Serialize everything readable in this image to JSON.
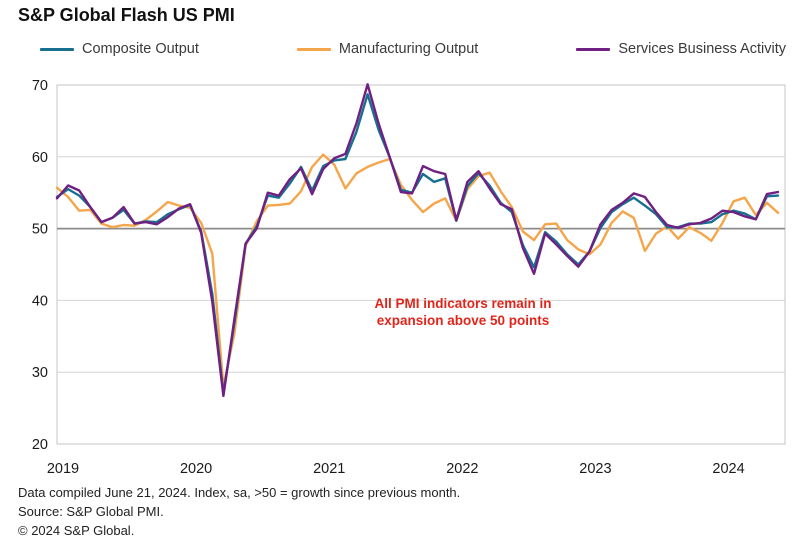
{
  "title": "S&P Global Flash US PMI",
  "legend": [
    {
      "label": "Composite Output",
      "color": "#17708F"
    },
    {
      "label": "Manufacturing Output",
      "color": "#F5A54A"
    },
    {
      "label": "Services Business Activity",
      "color": "#702082"
    }
  ],
  "annotation": {
    "lines": [
      "All PMI indicators remain in",
      "expansion above 50 points"
    ],
    "color": "#E1251B"
  },
  "footer": [
    "Data compiled June 21, 2024. Index, sa, >50 = growth since previous month.",
    "Source: S&P Global PMI.",
    "© 2024 S&P Global."
  ],
  "chart_data": {
    "type": "line",
    "title": "S&P Global Flash US PMI",
    "x_start": "2019-01",
    "x_end": "2024-06",
    "frequency": "monthly",
    "x_tick_labels": [
      "2019",
      "2020",
      "2021",
      "2022",
      "2023",
      "2024"
    ],
    "x_tick_month_index": [
      0,
      12,
      24,
      36,
      48,
      60
    ],
    "ylim": [
      20,
      70
    ],
    "y_ticks": [
      20,
      30,
      40,
      50,
      60,
      70
    ],
    "reference_line": 50,
    "grid": "horizontal",
    "legend_position": "top",
    "series": [
      {
        "name": "Composite Output",
        "color": "#17708F",
        "values": [
          54.4,
          55.5,
          54.6,
          53.0,
          50.9,
          51.5,
          52.6,
          50.7,
          51.0,
          50.9,
          52.0,
          52.7,
          53.3,
          49.6,
          40.9,
          27.0,
          37.0,
          47.9,
          50.3,
          54.6,
          54.3,
          56.3,
          58.6,
          55.3,
          58.7,
          59.5,
          59.7,
          63.5,
          68.7,
          63.7,
          59.9,
          55.4,
          55.0,
          57.6,
          56.5,
          57.0,
          51.1,
          55.9,
          57.7,
          56.0,
          53.6,
          52.3,
          47.7,
          44.6,
          49.5,
          48.2,
          46.4,
          45.0,
          46.8,
          50.1,
          52.3,
          53.4,
          54.3,
          53.2,
          52.0,
          50.2,
          50.2,
          50.7,
          50.7,
          50.9,
          52.0,
          52.5,
          52.1,
          51.3,
          54.5,
          54.6
        ]
      },
      {
        "name": "Manufacturing Output",
        "color": "#F5A54A",
        "values": [
          55.7,
          54.4,
          52.5,
          52.6,
          50.7,
          50.2,
          50.5,
          50.4,
          51.2,
          52.4,
          53.7,
          53.2,
          52.9,
          50.8,
          46.5,
          28.0,
          35.5,
          47.6,
          51.0,
          53.2,
          53.3,
          53.5,
          55.2,
          58.6,
          60.3,
          58.9,
          55.6,
          57.7,
          58.6,
          59.2,
          59.7,
          56.1,
          54.0,
          52.3,
          53.5,
          54.2,
          51.1,
          55.5,
          57.3,
          57.8,
          55.2,
          53.0,
          49.6,
          48.4,
          50.6,
          50.7,
          48.4,
          47.1,
          46.4,
          47.8,
          50.8,
          52.4,
          51.5,
          46.9,
          49.3,
          50.3,
          48.6,
          50.2,
          49.4,
          48.3,
          50.8,
          53.8,
          54.3,
          51.9,
          53.6,
          52.2
        ]
      },
      {
        "name": "Services Business Activity",
        "color": "#702082",
        "values": [
          54.2,
          56.0,
          55.3,
          53.0,
          50.9,
          51.5,
          53.0,
          50.7,
          50.9,
          50.6,
          51.6,
          52.8,
          53.4,
          49.4,
          39.8,
          26.7,
          37.5,
          47.9,
          50.0,
          55.0,
          54.6,
          56.9,
          58.4,
          54.8,
          58.3,
          59.8,
          60.4,
          64.7,
          70.1,
          64.6,
          59.9,
          55.1,
          54.9,
          58.7,
          58.0,
          57.6,
          51.2,
          56.5,
          58.0,
          55.6,
          53.4,
          52.7,
          47.3,
          43.7,
          49.3,
          47.8,
          46.2,
          44.7,
          46.8,
          50.6,
          52.6,
          53.6,
          54.9,
          54.4,
          52.3,
          50.5,
          50.1,
          50.6,
          50.8,
          51.4,
          52.5,
          52.3,
          51.7,
          51.3,
          54.8,
          55.1
        ]
      }
    ],
    "annotation": "All PMI indicators remain in expansion above 50 points"
  }
}
